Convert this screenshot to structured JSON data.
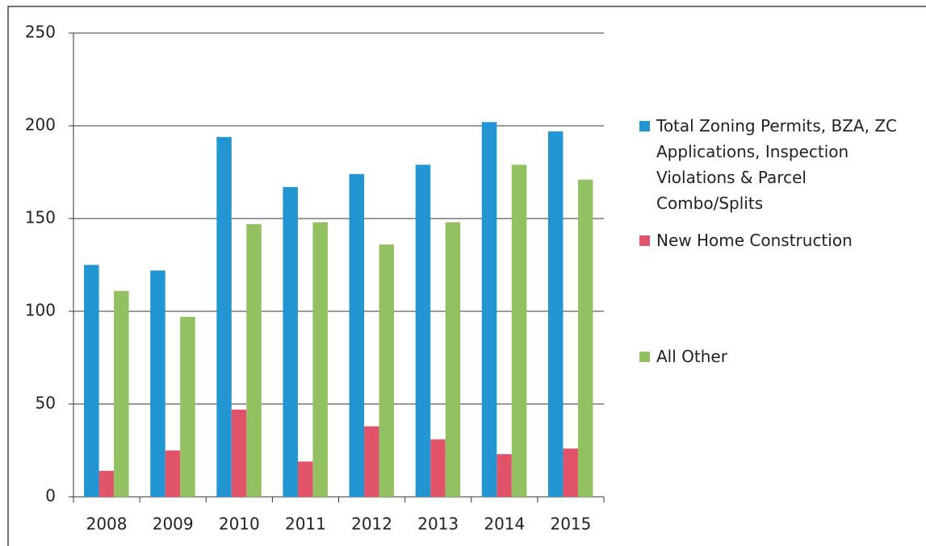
{
  "chart_data": {
    "type": "bar",
    "categories": [
      "2008",
      "2009",
      "2010",
      "2011",
      "2012",
      "2013",
      "2014",
      "2015"
    ],
    "series": [
      {
        "name": "Total Zoning Permits, BZA, ZC Applications, Inspection Violations & Parcel Combo/Splits",
        "color": "#2196d3",
        "values": [
          125,
          122,
          194,
          167,
          174,
          179,
          202,
          197
        ]
      },
      {
        "name": "New Home Construction",
        "color": "#e05368",
        "values": [
          14,
          25,
          47,
          19,
          38,
          31,
          23,
          26
        ]
      },
      {
        "name": "All Other",
        "color": "#93c162",
        "values": [
          111,
          97,
          147,
          148,
          136,
          148,
          179,
          171
        ]
      }
    ],
    "ylim": [
      0,
      250
    ],
    "yticks": [
      0,
      50,
      100,
      150,
      200,
      250
    ],
    "grid": true,
    "legend": "right"
  }
}
